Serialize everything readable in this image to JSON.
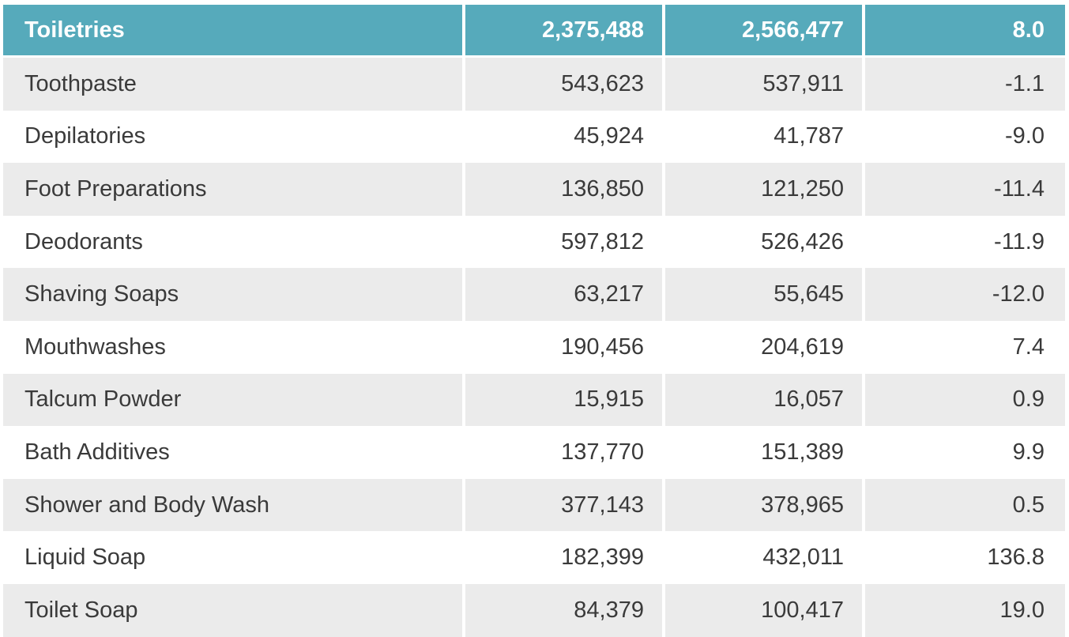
{
  "header": {
    "category": "Toiletries",
    "value_a": "2,375,488",
    "value_b": "2,566,477",
    "change": "8.0"
  },
  "rows": [
    {
      "name": "Toothpaste",
      "a": "543,623",
      "b": "537,911",
      "change": "-1.1"
    },
    {
      "name": "Depilatories",
      "a": "45,924",
      "b": "41,787",
      "change": "-9.0"
    },
    {
      "name": "Foot Preparations",
      "a": "136,850",
      "b": "121,250",
      "change": "-11.4"
    },
    {
      "name": "Deodorants",
      "a": "597,812",
      "b": "526,426",
      "change": "-11.9"
    },
    {
      "name": "Shaving Soaps",
      "a": "63,217",
      "b": "55,645",
      "change": "-12.0"
    },
    {
      "name": "Mouthwashes",
      "a": "190,456",
      "b": "204,619",
      "change": "7.4"
    },
    {
      "name": "Talcum Powder",
      "a": "15,915",
      "b": "16,057",
      "change": "0.9"
    },
    {
      "name": "Bath Additives",
      "a": "137,770",
      "b": "151,389",
      "change": "9.9"
    },
    {
      "name": "Shower and Body Wash",
      "a": "377,143",
      "b": "378,965",
      "change": "0.5"
    },
    {
      "name": "Liquid Soap",
      "a": "182,399",
      "b": "432,011",
      "change": "136.8"
    },
    {
      "name": "Toilet Soap",
      "a": "84,379",
      "b": "100,417",
      "change": "19.0"
    }
  ],
  "colors": {
    "header_bg": "#56aabb",
    "header_text": "#ffffff",
    "shaded_row": "#ebebeb",
    "plain_row": "#ffffff",
    "body_text": "#3a3a3a"
  }
}
